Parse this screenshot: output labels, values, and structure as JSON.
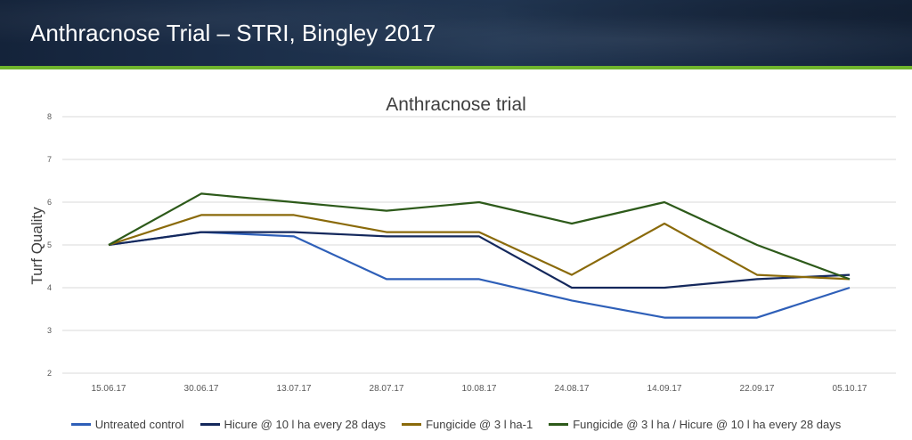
{
  "slide": {
    "title": "Anthracnose Trial – STRI, Bingley 2017",
    "colors": {
      "banner": "#1c2f4a",
      "accent_strip": "#6fb52c"
    }
  },
  "chart_data": {
    "type": "line",
    "title": "Anthracnose trial",
    "xlabel": "",
    "ylabel": "Turf Quality",
    "ylim": [
      2,
      8
    ],
    "yticks": [
      2,
      3,
      4,
      5,
      6,
      7,
      8
    ],
    "grid": true,
    "legend": "bottom",
    "categories": [
      "15.06.17",
      "30.06.17",
      "13.07.17",
      "28.07.17",
      "10.08.17",
      "24.08.17",
      "14.09.17",
      "22.09.17",
      "05.10.17"
    ],
    "series": [
      {
        "name": "Untreated control",
        "color": "#2e5fb8",
        "values": [
          5.0,
          5.3,
          5.2,
          4.2,
          4.2,
          3.7,
          3.3,
          3.3,
          4.0
        ]
      },
      {
        "name": "Hicure @ 10 l ha every 28 days",
        "color": "#14285c",
        "values": [
          5.0,
          5.3,
          5.3,
          5.2,
          5.2,
          4.0,
          4.0,
          4.2,
          4.3
        ]
      },
      {
        "name": "Fungicide @ 3 l ha-1",
        "color": "#8a6a0a",
        "values": [
          5.0,
          5.7,
          5.7,
          5.3,
          5.3,
          4.3,
          5.5,
          4.3,
          4.2
        ]
      },
      {
        "name": "Fungicide @ 3 l ha / Hicure @ 10 l ha every 28 days",
        "color": "#2d5a1a",
        "values": [
          5.0,
          6.2,
          6.0,
          5.8,
          6.0,
          5.5,
          6.0,
          5.0,
          4.2
        ]
      }
    ]
  }
}
